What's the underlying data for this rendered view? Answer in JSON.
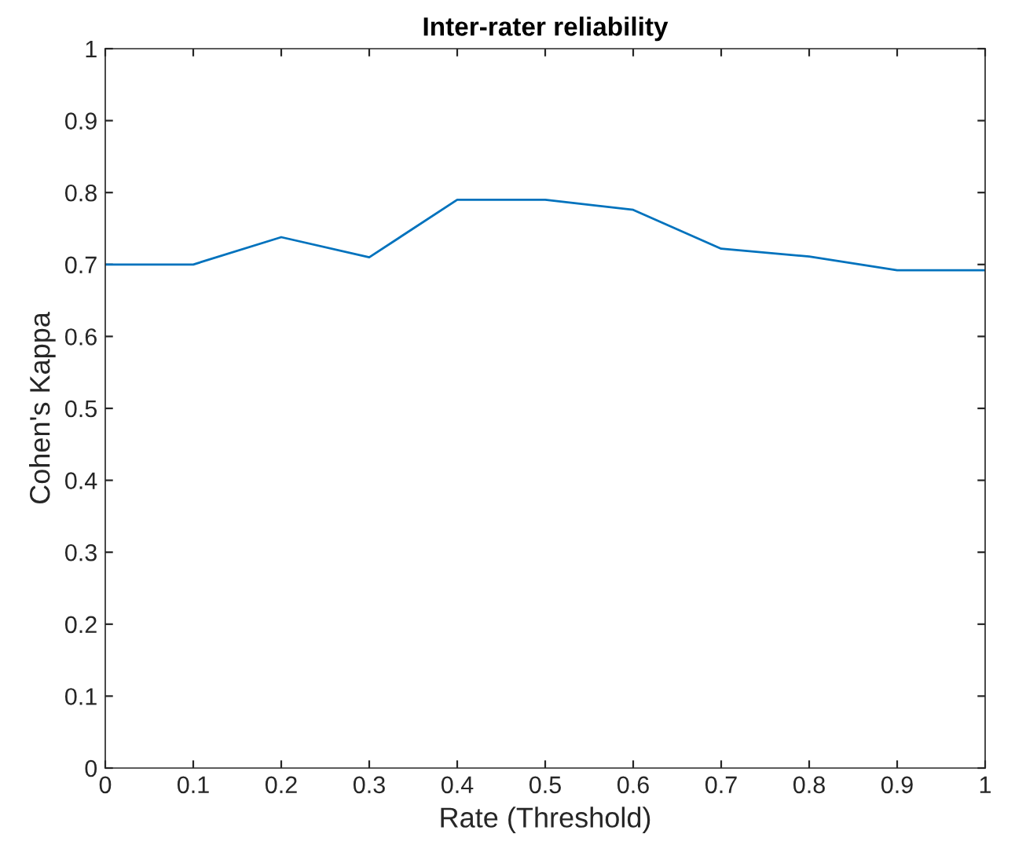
{
  "chart_data": {
    "type": "line",
    "title": "Inter-rater reliability",
    "xlabel": "Rate (Threshold)",
    "ylabel": "Cohen's Kappa",
    "x": [
      0,
      0.1,
      0.2,
      0.3,
      0.4,
      0.5,
      0.6,
      0.7,
      0.8,
      0.9,
      1.0
    ],
    "series": [
      {
        "color": "#0072bd",
        "values": [
          0.7,
          0.7,
          0.738,
          0.71,
          0.79,
          0.79,
          0.776,
          0.722,
          0.711,
          0.692,
          0.692
        ]
      }
    ],
    "xlim": [
      0,
      1
    ],
    "ylim": [
      0,
      1
    ],
    "xticks": [
      0,
      0.1,
      0.2,
      0.3,
      0.4,
      0.5,
      0.6,
      0.7,
      0.8,
      0.9,
      1
    ],
    "yticks": [
      0,
      0.1,
      0.2,
      0.3,
      0.4,
      0.5,
      0.6,
      0.7,
      0.8,
      0.9,
      1
    ],
    "grid": false,
    "marker": "none",
    "line_style": "solid"
  }
}
